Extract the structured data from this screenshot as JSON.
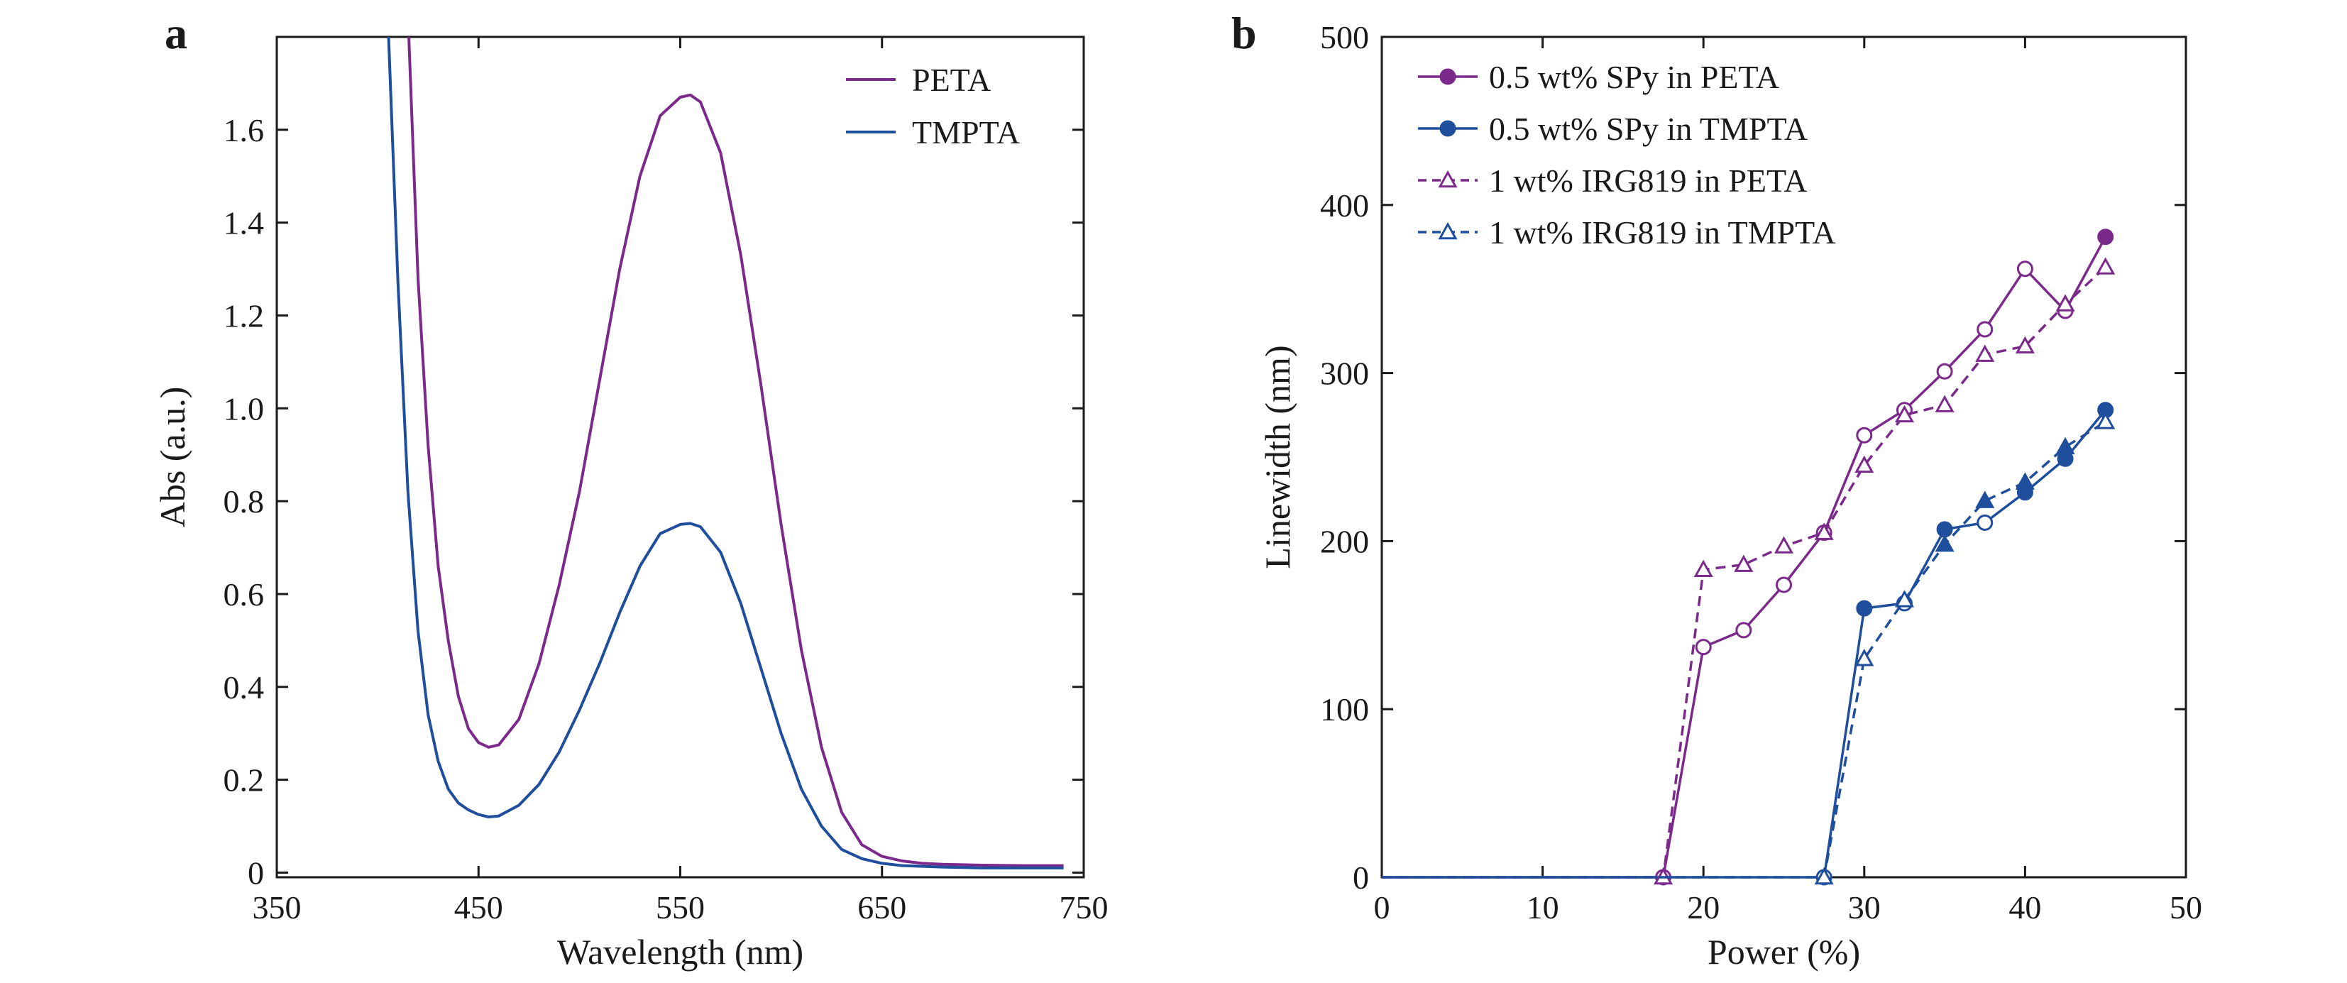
{
  "panel_labels": {
    "a": "a",
    "b": "b"
  },
  "chart_data": [
    {
      "type": "line",
      "panel": "a",
      "xlabel": "Wavelength (nm)",
      "ylabel": "Abs (a.u.)",
      "xlim": [
        350,
        750
      ],
      "ylim": [
        -0.01,
        1.8
      ],
      "x_ticks": [
        350,
        450,
        550,
        650,
        750
      ],
      "y_ticks": [
        0,
        0.2,
        0.4,
        0.6,
        0.8,
        1.0,
        1.2,
        1.4,
        1.6
      ],
      "y_tick_labels": [
        "0",
        "0.2",
        "0.4",
        "0.6",
        "0.8",
        "1.0",
        "1.2",
        "1.4",
        "1.6"
      ],
      "grid": false,
      "legend_position": "top-right",
      "series": [
        {
          "name": "PETA",
          "color": "#7b2a8c",
          "x": [
            415,
            420,
            425,
            430,
            435,
            440,
            445,
            450,
            455,
            460,
            470,
            480,
            490,
            500,
            510,
            520,
            530,
            540,
            550,
            555,
            560,
            570,
            580,
            590,
            600,
            610,
            620,
            630,
            640,
            650,
            660,
            670,
            680,
            700,
            720,
            740
          ],
          "y": [
            1.85,
            1.28,
            0.92,
            0.66,
            0.5,
            0.38,
            0.31,
            0.28,
            0.27,
            0.275,
            0.33,
            0.45,
            0.62,
            0.82,
            1.06,
            1.3,
            1.5,
            1.63,
            1.67,
            1.675,
            1.66,
            1.55,
            1.33,
            1.05,
            0.75,
            0.48,
            0.27,
            0.13,
            0.06,
            0.035,
            0.025,
            0.02,
            0.018,
            0.016,
            0.015,
            0.015
          ]
        },
        {
          "name": "TMPTA",
          "color": "#1f4e9c",
          "x": [
            405,
            410,
            415,
            420,
            425,
            430,
            435,
            440,
            445,
            450,
            455,
            460,
            470,
            480,
            490,
            500,
            510,
            520,
            530,
            540,
            550,
            555,
            560,
            570,
            580,
            590,
            600,
            610,
            620,
            630,
            640,
            650,
            660,
            680,
            700,
            740
          ],
          "y": [
            1.85,
            1.28,
            0.82,
            0.52,
            0.34,
            0.24,
            0.18,
            0.15,
            0.135,
            0.125,
            0.12,
            0.122,
            0.145,
            0.19,
            0.26,
            0.35,
            0.45,
            0.56,
            0.66,
            0.73,
            0.75,
            0.752,
            0.745,
            0.69,
            0.58,
            0.44,
            0.3,
            0.18,
            0.1,
            0.05,
            0.03,
            0.02,
            0.015,
            0.012,
            0.01,
            0.01
          ]
        }
      ]
    },
    {
      "type": "line",
      "panel": "b",
      "xlabel": "Power (%)",
      "ylabel": "Linewidth (nm)",
      "xlim": [
        0,
        50
      ],
      "ylim": [
        0,
        500
      ],
      "x_ticks": [
        0,
        10,
        20,
        30,
        40,
        50
      ],
      "y_ticks": [
        0,
        100,
        200,
        300,
        400,
        500
      ],
      "grid": false,
      "legend_position": "top-left",
      "series": [
        {
          "name": "0.5 wt% SPy in PETA",
          "color": "#7b2a8c",
          "line": "solid",
          "marker": "circle",
          "x": [
            0,
            17.5,
            20,
            22.5,
            25,
            27.5,
            30,
            32.5,
            35,
            37.5,
            40,
            42.5,
            45
          ],
          "y": [
            0,
            0,
            137,
            147,
            174,
            205,
            263,
            278,
            301,
            326,
            362,
            337,
            381
          ]
        },
        {
          "name": "0.5 wt% SPy in TMPTA",
          "color": "#1f4e9c",
          "line": "solid",
          "marker": "circle",
          "x": [
            0,
            27.5,
            30,
            32.5,
            35,
            37.5,
            40,
            42.5,
            45
          ],
          "y": [
            0,
            0,
            160,
            163,
            207,
            211,
            229,
            249,
            278
          ]
        },
        {
          "name": "1 wt% IRG819  in PETA",
          "color": "#7b2a8c",
          "line": "dashed",
          "marker": "triangle",
          "x": [
            0,
            17.5,
            20,
            22.5,
            25,
            27.5,
            30,
            32.5,
            35,
            37.5,
            40,
            42.5,
            45
          ],
          "y": [
            0,
            0,
            183,
            186,
            197,
            205,
            245,
            275,
            281,
            311,
            316,
            341,
            363
          ]
        },
        {
          "name": "1 wt% IRG819 in TMPTA",
          "color": "#1f4e9c",
          "line": "dashed",
          "marker": "triangle",
          "x": [
            0,
            27.5,
            30,
            32.5,
            35,
            37.5,
            40,
            42.5,
            45
          ],
          "y": [
            0,
            0,
            130,
            165,
            198,
            224,
            235,
            256,
            271
          ]
        }
      ]
    }
  ]
}
